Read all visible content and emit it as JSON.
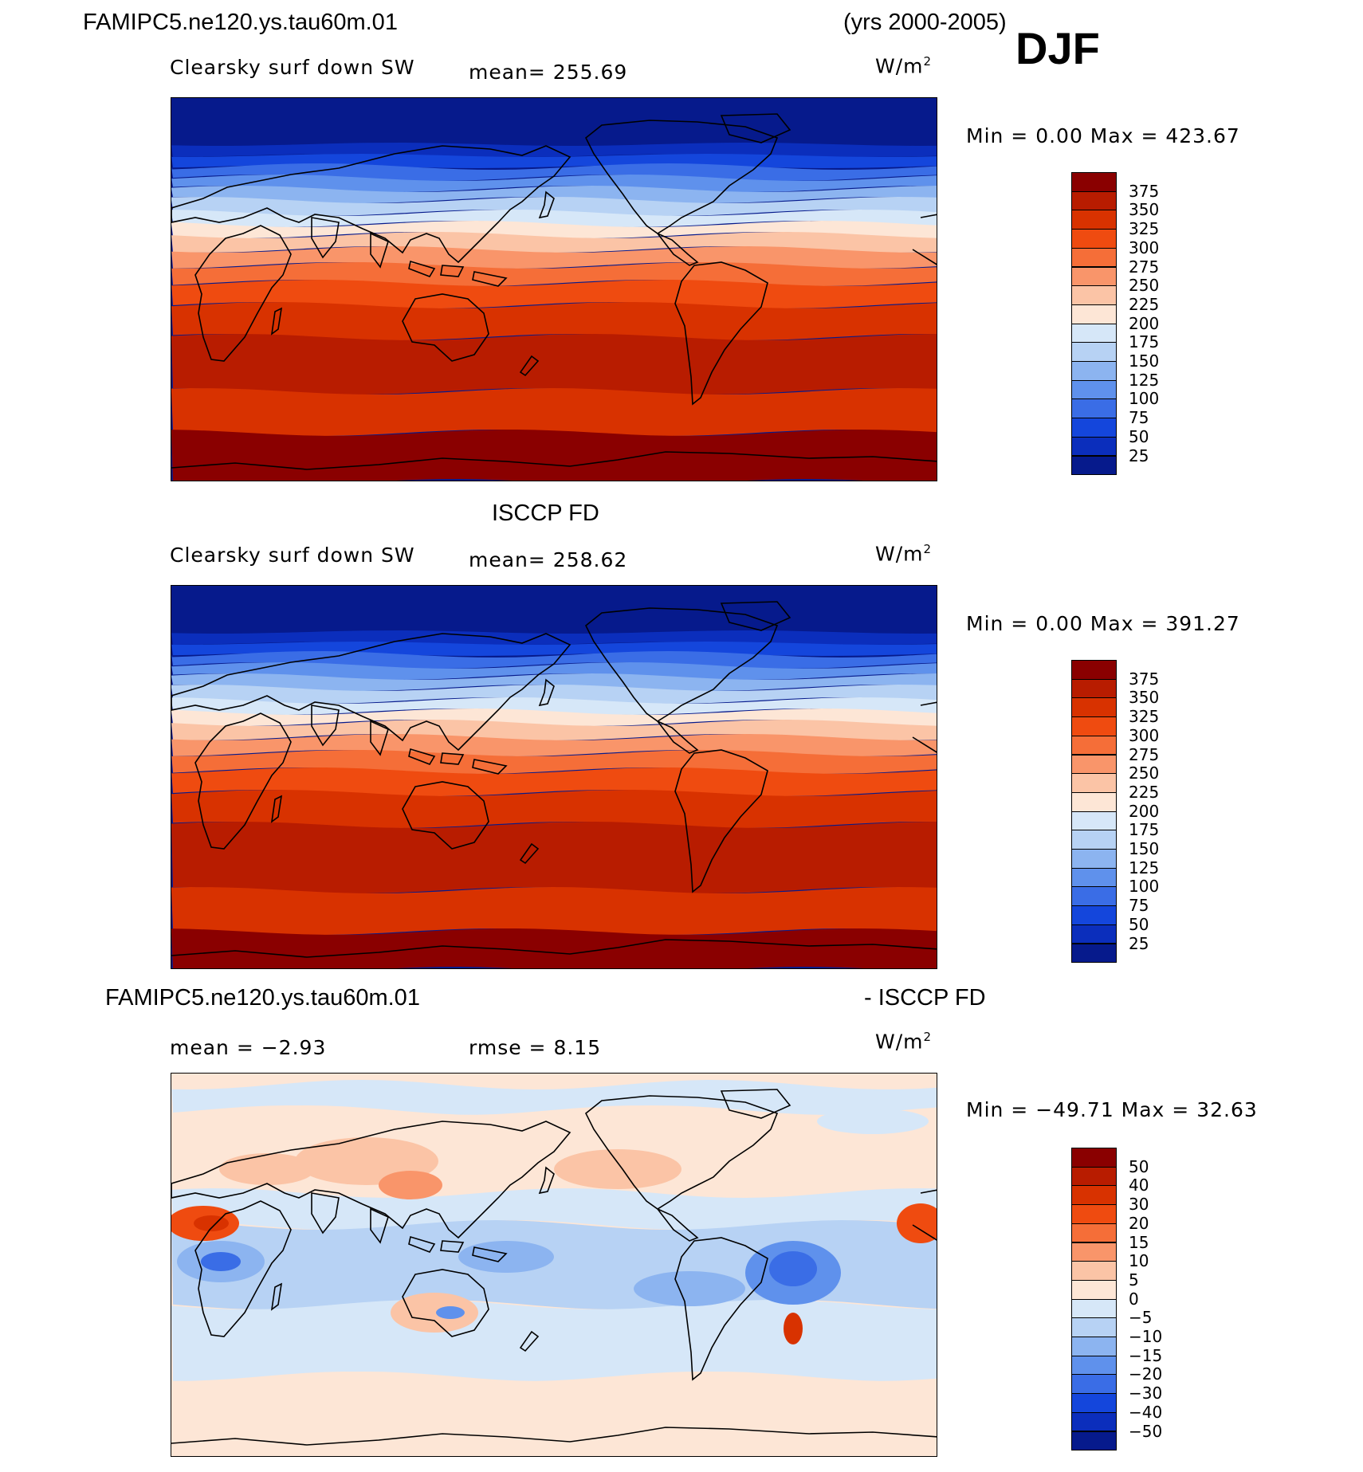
{
  "header": {
    "model": "FAMIPC5.ne120.ys.tau60m.01",
    "years": "(yrs 2000-2005)",
    "season": "DJF"
  },
  "panels": [
    {
      "id": "model",
      "title": "",
      "field": "Clearsky surf down SW",
      "stat1": "mean= 255.69",
      "stat2": "",
      "unit": "W/m",
      "unit_sup": "2",
      "minmax": "Min =    0.00 Max = 423.67"
    },
    {
      "id": "obs",
      "title": "ISCCP FD",
      "field": "Clearsky surf down SW",
      "stat1": "mean= 258.62",
      "stat2": "",
      "unit": "W/m",
      "unit_sup": "2",
      "minmax": "Min =    0.00 Max = 391.27"
    },
    {
      "id": "diff",
      "title_left": "FAMIPC5.ne120.ys.tau60m.01",
      "title_right": "- ISCCP FD",
      "field": "",
      "stat1": "mean =  −2.93",
      "stat2": "rmse =   8.15",
      "unit": "W/m",
      "unit_sup": "2",
      "minmax": "Min = −49.71 Max =  32.63"
    }
  ],
  "colorbars": {
    "absolute": {
      "labels": [
        "375",
        "350",
        "325",
        "300",
        "275",
        "250",
        "225",
        "200",
        "175",
        "150",
        "125",
        "100",
        "75",
        "50",
        "25"
      ],
      "colors": [
        "#8a0000",
        "#b81c00",
        "#d83200",
        "#ef4b10",
        "#f56e38",
        "#f9956a",
        "#fbc4a6",
        "#fde6d6",
        "#d6e7f8",
        "#b7d2f4",
        "#8cb4f0",
        "#5f91ec",
        "#3a6de6",
        "#1446dc",
        "#0b2ebc",
        "#061a8c"
      ]
    },
    "difference": {
      "labels": [
        "50",
        "40",
        "30",
        "20",
        "15",
        "10",
        "5",
        "0",
        "−5",
        "−10",
        "−15",
        "−20",
        "−30",
        "−40",
        "−50"
      ],
      "colors": [
        "#8a0000",
        "#b81c00",
        "#d83200",
        "#ef4b10",
        "#f56e38",
        "#f9956a",
        "#fbc4a6",
        "#fde6d6",
        "#d6e7f8",
        "#b7d2f4",
        "#8cb4f0",
        "#5f91ec",
        "#3a6de6",
        "#1446dc",
        "#0b2ebc",
        "#061a8c"
      ]
    }
  }
}
